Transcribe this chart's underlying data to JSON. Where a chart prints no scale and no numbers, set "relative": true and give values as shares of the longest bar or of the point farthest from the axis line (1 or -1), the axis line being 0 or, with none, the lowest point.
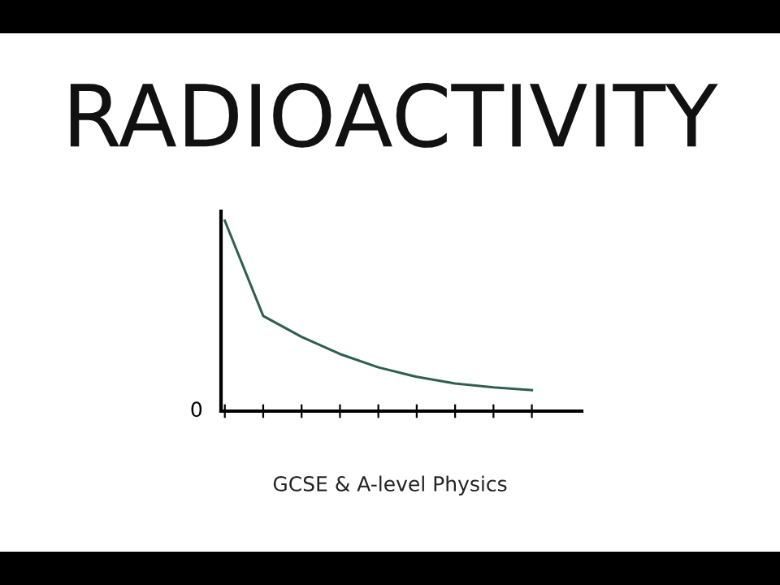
{
  "chart_data": {
    "type": "line",
    "title": "RADIOACTIVITY",
    "subtitle": "GCSE & A-level Physics",
    "annotations": [
      "0"
    ],
    "relative": true,
    "categories": [
      null,
      null,
      null,
      null,
      null,
      null,
      null,
      null,
      null
    ],
    "series": [
      {
        "color": "#2f5f4f",
        "values": [
          1.0,
          0.5,
          0.39,
          0.3,
          0.23,
          0.18,
          0.145,
          0.125,
          0.11
        ]
      }
    ],
    "grid": false,
    "legend": false,
    "marker": "none",
    "line_style": "solid"
  }
}
